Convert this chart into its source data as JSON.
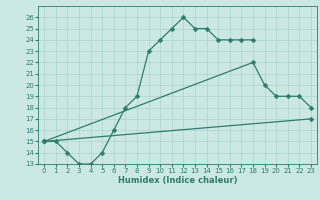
{
  "xlabel": "Humidex (Indice chaleur)",
  "bg_color": "#cce8e4",
  "line_color": "#2e7d6e",
  "grid_color": "#aad4cc",
  "xlim": [
    -0.5,
    23.5
  ],
  "ylim": [
    13,
    27
  ],
  "yticks": [
    13,
    14,
    15,
    16,
    17,
    18,
    19,
    20,
    21,
    22,
    23,
    24,
    25,
    26
  ],
  "xticks": [
    0,
    1,
    2,
    3,
    4,
    5,
    6,
    7,
    8,
    9,
    10,
    11,
    12,
    13,
    14,
    15,
    16,
    17,
    18,
    19,
    20,
    21,
    22,
    23
  ],
  "line1_x": [
    0,
    1,
    2,
    3,
    4,
    5,
    6,
    7,
    8,
    9,
    10,
    11,
    12,
    13,
    14,
    15,
    16,
    17,
    18
  ],
  "line1_y": [
    15,
    15,
    14,
    13,
    13,
    14,
    16,
    18,
    19,
    23,
    24,
    25,
    26,
    25,
    25,
    24,
    24,
    24,
    24
  ],
  "line2_x": [
    0,
    18,
    19,
    20,
    21,
    22,
    23
  ],
  "line2_y": [
    15,
    22,
    20,
    19,
    19,
    19,
    18
  ],
  "line3_x": [
    0,
    23
  ],
  "line3_y": [
    15,
    17
  ]
}
